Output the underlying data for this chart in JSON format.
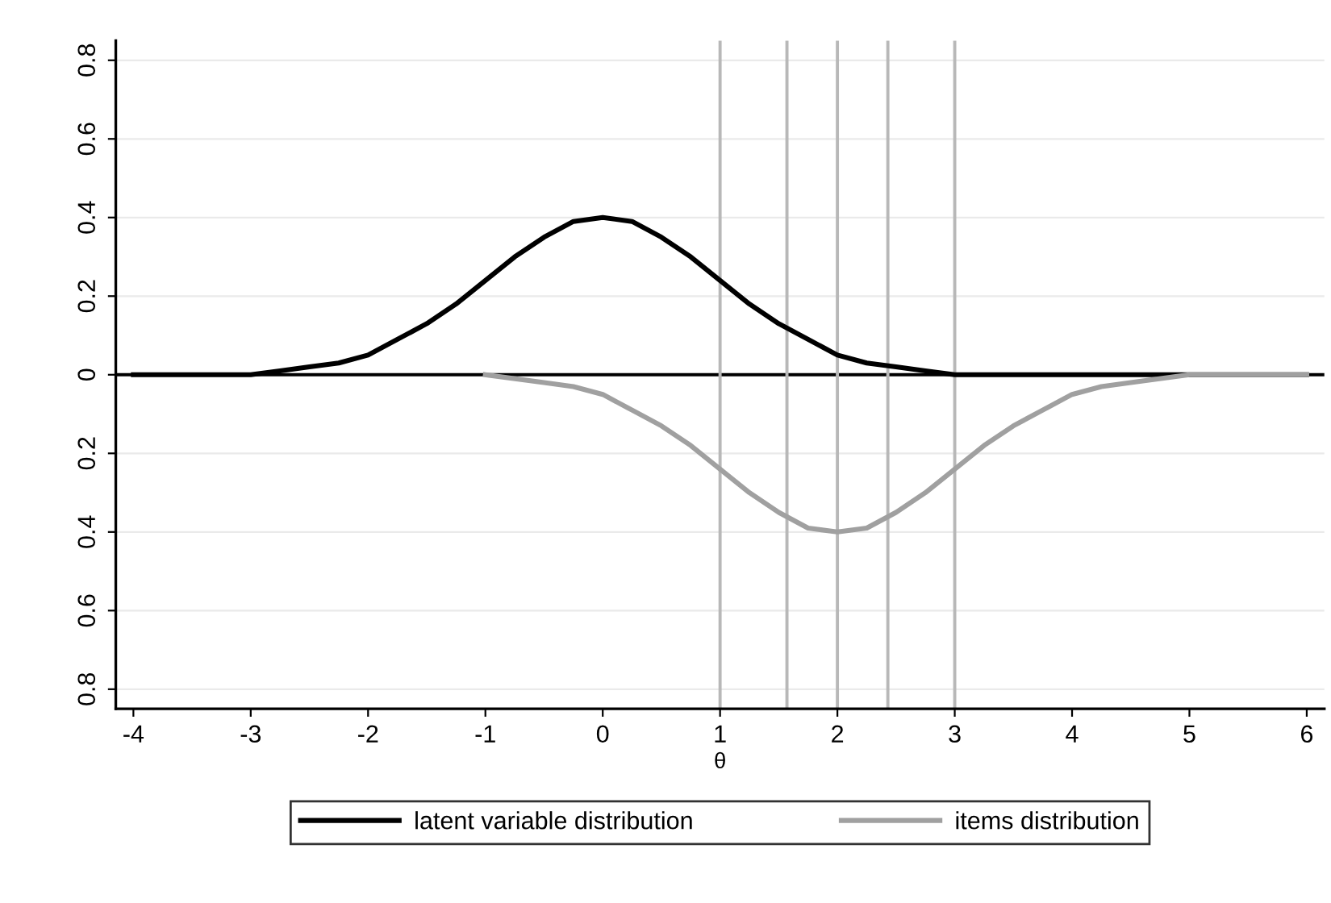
{
  "chart_data": {
    "type": "line",
    "xlabel": "θ",
    "series": [
      {
        "name": "latent variable distribution",
        "color": "#000000",
        "x": [
          -4,
          -3.5,
          -3,
          -2.75,
          -2.5,
          -2.25,
          -2,
          -1.75,
          -1.5,
          -1.25,
          -1,
          -0.75,
          -0.5,
          -0.25,
          0,
          0.25,
          0.5,
          0.75,
          1,
          1.25,
          1.5,
          1.75,
          2,
          2.25,
          2.5,
          2.75,
          3,
          3.5,
          4,
          5,
          6
        ],
        "values": [
          0,
          0,
          0,
          0.01,
          0.02,
          0.03,
          0.05,
          0.09,
          0.13,
          0.18,
          0.24,
          0.3,
          0.35,
          0.39,
          0.4,
          0.39,
          0.35,
          0.3,
          0.24,
          0.18,
          0.13,
          0.09,
          0.05,
          0.03,
          0.02,
          0.01,
          0,
          0,
          0,
          0,
          0
        ]
      },
      {
        "name": "items distribution",
        "color": "#a0a0a0",
        "x": [
          -1,
          -0.5,
          -0.25,
          0,
          0.25,
          0.5,
          0.75,
          1,
          1.25,
          1.5,
          1.75,
          2,
          2.25,
          2.5,
          2.75,
          3,
          3.25,
          3.5,
          3.75,
          4,
          4.25,
          4.5,
          5,
          5.5,
          6
        ],
        "values": [
          0,
          -0.02,
          -0.03,
          -0.05,
          -0.09,
          -0.13,
          -0.18,
          -0.24,
          -0.3,
          -0.35,
          -0.39,
          -0.4,
          -0.39,
          -0.35,
          -0.3,
          -0.24,
          -0.18,
          -0.13,
          -0.09,
          -0.05,
          -0.03,
          -0.02,
          0,
          0,
          0
        ]
      }
    ],
    "xlim": [
      -4.15,
      6.15
    ],
    "xticks": [
      -4,
      -3,
      -2,
      -1,
      0,
      1,
      2,
      3,
      4,
      5,
      6
    ],
    "ylim": [
      -0.85,
      0.85
    ],
    "yticks": [
      {
        "value": -0.8,
        "label": "0.8"
      },
      {
        "value": -0.6,
        "label": "0.6"
      },
      {
        "value": -0.4,
        "label": "0.4"
      },
      {
        "value": -0.2,
        "label": "0.2"
      },
      0,
      0.2,
      0.4,
      0.6,
      0.8
    ],
    "ref_lines": [
      {
        "axis": "y",
        "value": 0,
        "color": "#000000"
      },
      {
        "axis": "x",
        "value": 1,
        "color": "#b8b8b8"
      },
      {
        "axis": "x",
        "value": 1.57,
        "color": "#b8b8b8"
      },
      {
        "axis": "x",
        "value": 2,
        "color": "#b8b8b8"
      },
      {
        "axis": "x",
        "value": 2.43,
        "color": "#b8b8b8"
      },
      {
        "axis": "x",
        "value": 3,
        "color": "#b8b8b8"
      }
    ],
    "grid": "y",
    "legend": "bottom",
    "line_style": "solid",
    "marker": "none"
  }
}
